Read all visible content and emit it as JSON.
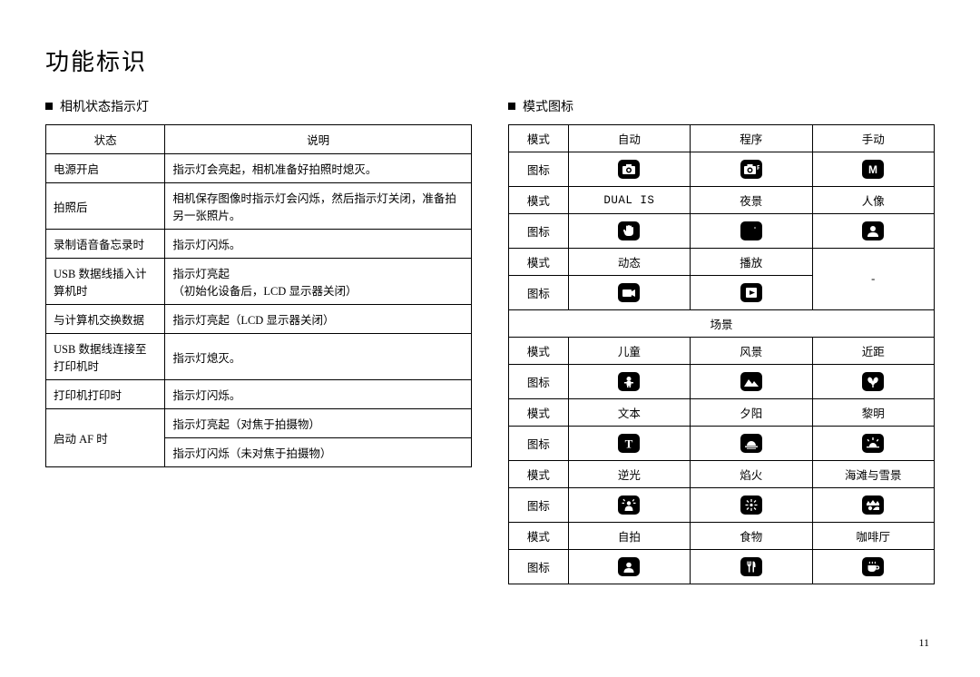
{
  "title": "功能标识",
  "pageNumber": "11",
  "left": {
    "heading": "相机状态指示灯",
    "headers": [
      "状态",
      "说明"
    ],
    "rows": [
      [
        "电源开启",
        "指示灯会亮起，相机准备好拍照时熄灭。"
      ],
      [
        "拍照后",
        "相机保存图像时指示灯会闪烁，然后指示灯关闭，准备拍另一张照片。"
      ],
      [
        "录制语音备忘录时",
        "指示灯闪烁。"
      ],
      [
        "USB 数据线插入计算机时",
        "指示灯亮起\n（初始化设备后，LCD 显示器关闭）"
      ],
      [
        "与计算机交换数据",
        "指示灯亮起（LCD 显示器关闭）"
      ],
      [
        "USB 数据线连接至打印机时",
        "指示灯熄灭。"
      ],
      [
        "打印机打印时",
        "指示灯闪烁。"
      ]
    ],
    "afRow": {
      "label": "启动 AF 时",
      "line1": "指示灯亮起（对焦于拍摄物）",
      "line2": "指示灯闪烁（未对焦于拍摄物）"
    }
  },
  "right": {
    "heading": "模式图标",
    "labels": {
      "mode": "模式",
      "icon": "图标",
      "scene": "场景"
    },
    "group1": {
      "row1": [
        "自动",
        "程序",
        "手动"
      ],
      "icons1": [
        "camera",
        "camera-p",
        "letter-m"
      ]
    },
    "group2": {
      "row1Label": "DUAL IS",
      "row1": [
        "夜景",
        "人像"
      ],
      "icons1": [
        "hand",
        "moon",
        "person"
      ]
    },
    "group3": {
      "row1": [
        "动态",
        "播放"
      ],
      "icons1": [
        "movie",
        "play"
      ]
    },
    "group4": {
      "rows": [
        {
          "modes": [
            "儿童",
            "风景",
            "近距"
          ],
          "icons": [
            "child",
            "landscape",
            "macro"
          ]
        },
        {
          "modes": [
            "文本",
            "夕阳",
            "黎明"
          ],
          "icons": [
            "text",
            "sunset",
            "dawn"
          ]
        },
        {
          "modes": [
            "逆光",
            "焰火",
            "海滩与雪景"
          ],
          "icons": [
            "backlight",
            "fireworks",
            "beach"
          ]
        },
        {
          "modes": [
            "自拍",
            "食物",
            "咖啡厅"
          ],
          "icons": [
            "selfportrait",
            "food",
            "cafe"
          ]
        }
      ]
    }
  }
}
